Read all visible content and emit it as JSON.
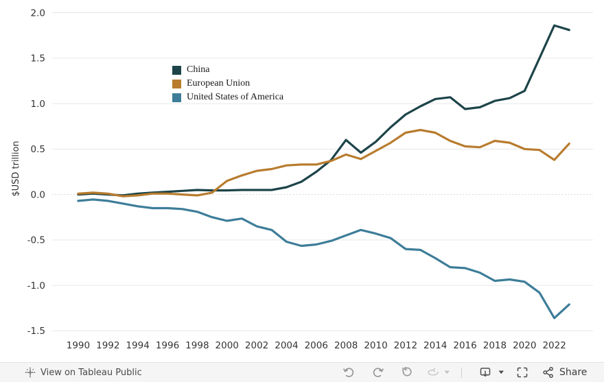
{
  "chart_data": {
    "type": "line",
    "title": "",
    "xlabel": "",
    "ylabel": "$USD trillion",
    "grid": true,
    "grid_color": "#e6e6e6",
    "zero_line_color": "#c9c9c9",
    "tick_color": "#333333",
    "legend_position": "inside-top-left",
    "xlim": [
      1988.25,
      2024.6
    ],
    "ylim": [
      -1.55,
      2.14
    ],
    "xticks": [
      1990,
      1992,
      1994,
      1996,
      1998,
      2000,
      2002,
      2004,
      2006,
      2008,
      2010,
      2012,
      2014,
      2016,
      2018,
      2020,
      2022
    ],
    "yticks": [
      {
        "value": 2.0,
        "label": "2.0"
      },
      {
        "value": 1.5,
        "label": "1.5"
      },
      {
        "value": 1.0,
        "label": "1.0"
      },
      {
        "value": 0.5,
        "label": "0.5"
      },
      {
        "value": 0.0,
        "label": "0.0"
      },
      {
        "value": -0.5,
        "label": "-0.5"
      },
      {
        "value": -1.0,
        "label": "-1.0"
      },
      {
        "value": -1.5,
        "label": "-1.5"
      }
    ],
    "x": [
      1990,
      1991,
      1992,
      1993,
      1994,
      1995,
      1996,
      1997,
      1998,
      1999,
      2000,
      2001,
      2002,
      2003,
      2004,
      2005,
      2006,
      2007,
      2008,
      2009,
      2010,
      2011,
      2012,
      2013,
      2014,
      2015,
      2016,
      2017,
      2018,
      2019,
      2020,
      2021,
      2022,
      2023
    ],
    "series": [
      {
        "name": "China",
        "color": "#1c4449",
        "values": [
          0.0,
          0.01,
          0.0,
          -0.01,
          0.01,
          0.02,
          0.03,
          0.04,
          0.05,
          0.045,
          0.045,
          0.05,
          0.05,
          0.05,
          0.08,
          0.14,
          0.25,
          0.38,
          0.6,
          0.46,
          0.58,
          0.74,
          0.88,
          0.97,
          1.05,
          1.07,
          0.94,
          0.96,
          1.03,
          1.06,
          1.14,
          1.5,
          1.86,
          1.81
        ]
      },
      {
        "name": "European Union",
        "color": "#b87c2e",
        "values": [
          0.01,
          0.02,
          0.01,
          -0.02,
          -0.01,
          0.01,
          0.01,
          0.0,
          -0.01,
          0.02,
          0.15,
          0.21,
          0.26,
          0.28,
          0.32,
          0.33,
          0.33,
          0.37,
          0.44,
          0.39,
          0.48,
          0.57,
          0.68,
          0.71,
          0.68,
          0.59,
          0.53,
          0.52,
          0.59,
          0.57,
          0.5,
          0.49,
          0.38,
          0.56
        ]
      },
      {
        "name": "United States of America",
        "color": "#3d7d99",
        "values": [
          -0.07,
          -0.055,
          -0.07,
          -0.1,
          -0.13,
          -0.15,
          -0.15,
          -0.16,
          -0.19,
          -0.25,
          -0.29,
          -0.265,
          -0.35,
          -0.39,
          -0.52,
          -0.565,
          -0.55,
          -0.51,
          -0.45,
          -0.39,
          -0.43,
          -0.48,
          -0.6,
          -0.61,
          -0.7,
          -0.8,
          -0.81,
          -0.86,
          -0.95,
          -0.935,
          -0.96,
          -1.08,
          -1.36,
          -1.21
        ]
      }
    ]
  },
  "footer": {
    "view_label": "View on Tableau Public",
    "share_label": "Share",
    "icon_names": [
      "tableau-logo-icon",
      "undo-icon",
      "redo-icon",
      "reset-icon",
      "refresh-icon",
      "caret-down-icon",
      "download-icon",
      "caret-down-icon",
      "fullscreen-icon",
      "share-icon"
    ]
  }
}
